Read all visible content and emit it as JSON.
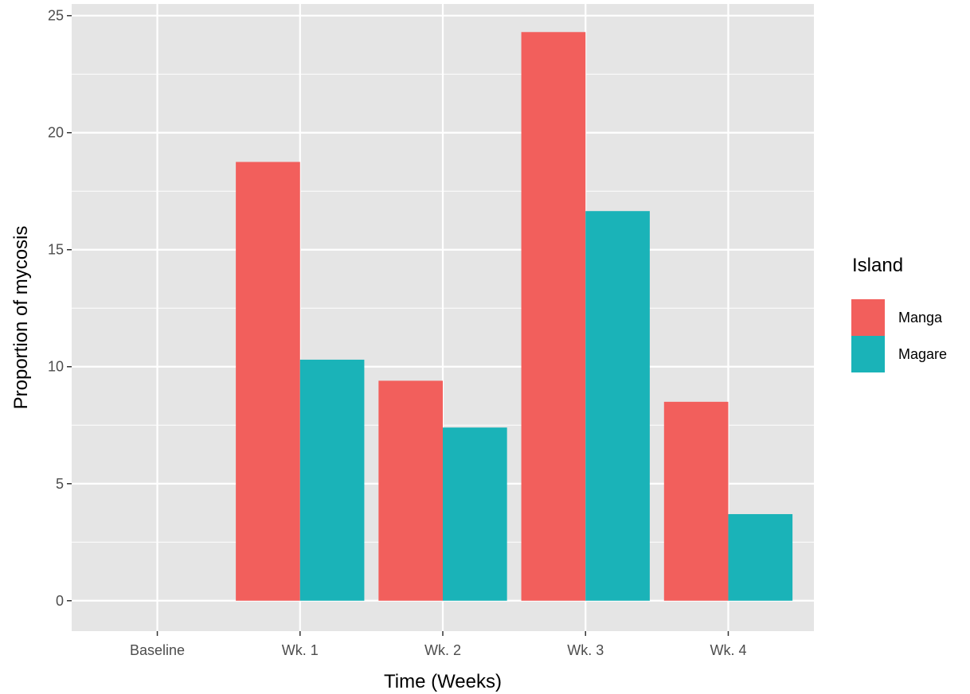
{
  "chart_data": {
    "type": "bar",
    "categories": [
      "Baseline",
      "Wk. 1",
      "Wk. 2",
      "Wk. 3",
      "Wk. 4"
    ],
    "series": [
      {
        "name": "Manga",
        "color": "#F25F5C",
        "values": [
          0,
          18.75,
          9.4,
          24.3,
          8.5
        ]
      },
      {
        "name": "Magare",
        "color": "#1AB3B8",
        "values": [
          0,
          10.3,
          7.4,
          16.65,
          3.7
        ]
      }
    ],
    "xlabel": "Time (Weeks)",
    "ylabel": "Proportion of mycosis",
    "ylim": [
      -1.3,
      25.5
    ],
    "yticks": [
      0,
      5,
      10,
      15,
      20,
      25
    ],
    "ytick_labels": [
      "0",
      "5",
      "10",
      "15",
      "20",
      "25"
    ],
    "legend": {
      "title": "Island",
      "placement": "right"
    },
    "grid": true,
    "panel_background": "#E5E5E5",
    "grid_color": "#FFFFFF"
  }
}
